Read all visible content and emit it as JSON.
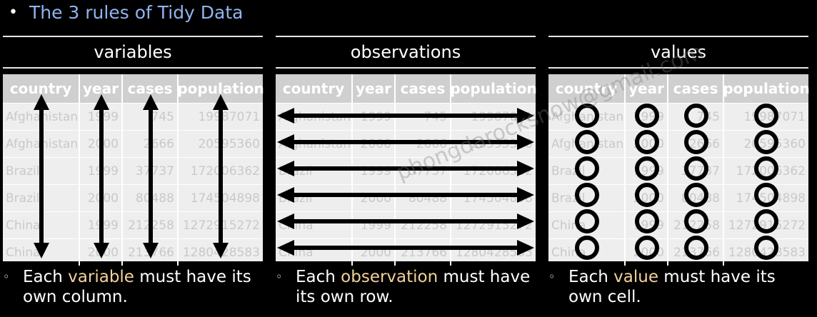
{
  "title": "The 3 rules of Tidy Data",
  "bullet": "•",
  "panels": [
    {
      "header": "variables",
      "caption_pre": "Each ",
      "caption_hl": "variable",
      "caption_post": " must have its own column."
    },
    {
      "header": "observations",
      "caption_pre": "Each ",
      "caption_hl": "observation",
      "caption_post": " must have its own row."
    },
    {
      "header": "values",
      "caption_pre": "Each ",
      "caption_hl": "value",
      "caption_post": " must have its own cell."
    }
  ],
  "sub_bullet": "◦",
  "table": {
    "columns": [
      "country",
      "year",
      "cases",
      "population"
    ],
    "rows": [
      [
        "Afghanistan",
        "1999",
        "745",
        "19987071"
      ],
      [
        "Afghanistan",
        "2000",
        "2666",
        "20595360"
      ],
      [
        "Brazil",
        "1999",
        "37737",
        "172006362"
      ],
      [
        "Brazil",
        "2000",
        "80488",
        "174504898"
      ],
      [
        "China",
        "1999",
        "212258",
        "1272915272"
      ],
      [
        "China",
        "2000",
        "213766",
        "1280428583"
      ]
    ]
  },
  "watermark": "phongdarocksnow@gmail.com",
  "colors": {
    "title": "#8fb4ef",
    "highlight": "#f2d29a",
    "table_header": "#cfcfcf",
    "table_body": "#eeeeee"
  }
}
